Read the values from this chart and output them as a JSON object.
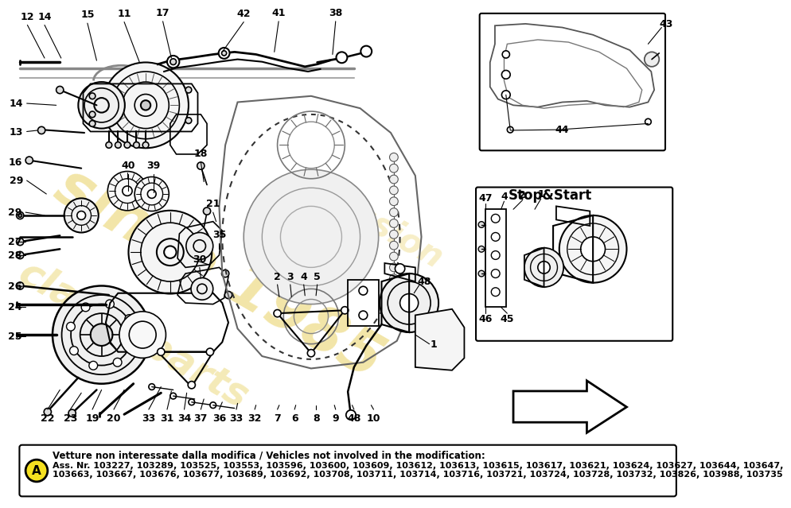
{
  "bg_color": "#ffffff",
  "watermark_text1": "since 1985",
  "watermark_text2": "classicparts",
  "watermark_color": "#e8d060",
  "note_line1": "Vetture non interessate dalla modifica / Vehicles not involved in the modification:",
  "note_line2": "Ass. Nr. 103227, 103289, 103525, 103553, 103596, 103600, 103609, 103612, 103613, 103615, 103617, 103621, 103624, 103627, 103644, 103647,",
  "note_line3": "103663, 103667, 103676, 103677, 103689, 103692, 103708, 103711, 103714, 103716, 103721, 103724, 103728, 103732, 103826, 103988, 103735",
  "stop_start": "Stop&Start",
  "lw": 1.2
}
